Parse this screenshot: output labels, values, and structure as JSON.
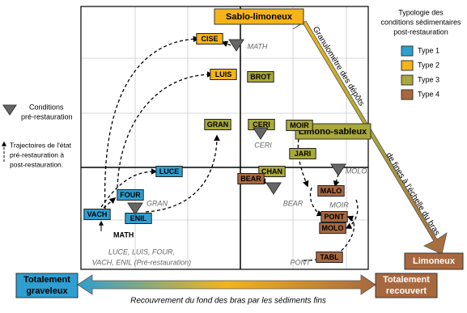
{
  "legend": {
    "title_lines": [
      "Typologie des",
      "conditions sédimentaires",
      "post-restauration"
    ],
    "types": [
      {
        "label": "Type 1",
        "color": "#2e9fd0",
        "sites": [
          "LUCE",
          "FOUR",
          "VACH",
          "ENIL"
        ]
      },
      {
        "label": "Type 2",
        "color": "#f4b41a",
        "sites": [
          "CISE",
          "LUIS"
        ]
      },
      {
        "label": "Type 3",
        "color": "#a9a83a",
        "sites": [
          "BROT",
          "GRAN",
          "CERI",
          "MOIR",
          "JARI",
          "CHAN"
        ]
      },
      {
        "label": "Type 4",
        "color": "#a8683f",
        "sites": [
          "BEAR",
          "MALO",
          "PONT",
          "MOLO",
          "TABL"
        ]
      }
    ]
  },
  "pre_legend": {
    "marker_label": [
      "Conditions",
      "pré-restauration"
    ],
    "trajectory_label": [
      "Trajectoires de l'état",
      "pré-restauration à",
      "post-restauration."
    ]
  },
  "pre_restoration_labels": [
    "MATH",
    "CERI",
    "MOLO",
    "BEAR",
    "GRAN",
    "MOIR",
    "PONT"
  ],
  "math_label": "MATH",
  "note_lines": [
    "LUCE, LUIS, FOUR,",
    "VACH, ENIL (Pré-restauration)"
  ],
  "vertical_axis": {
    "top": "Sablo-limoneux",
    "middle": "Limono-sableux",
    "bottom": "Limoneux",
    "label_lines": [
      "Granulomètre des dépôts",
      "de fines à l'échelle du bras"
    ]
  },
  "horizontal_axis": {
    "left": [
      "Totalement",
      "graveleux"
    ],
    "right": [
      "Totalement",
      "recouvert"
    ],
    "label": "Recouvrement du fond des bras par les sédiments fins"
  }
}
